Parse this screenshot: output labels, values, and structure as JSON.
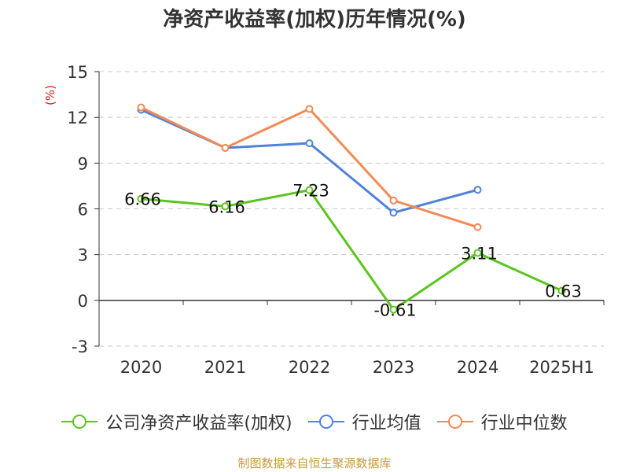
{
  "chart_data": {
    "type": "line",
    "title": "净资产收益率(加权)历年情况(%)",
    "ylabel": "(%)",
    "categories": [
      "2020",
      "2021",
      "2022",
      "2023",
      "2024",
      "2025H1"
    ],
    "ylim": [
      -3,
      15
    ],
    "yticks": [
      -3,
      0,
      3,
      6,
      9,
      12,
      15
    ],
    "grid": true,
    "legend_position": "bottom",
    "series": [
      {
        "name": "公司净资产收益率(加权)",
        "color": "#5cc41e",
        "values": [
          6.66,
          6.16,
          7.23,
          -0.61,
          3.11,
          0.63
        ],
        "labels": [
          "6.66",
          "6.16",
          "7.23",
          "-0.61",
          "3.11",
          "0.63"
        ]
      },
      {
        "name": "行业均值",
        "color": "#4f82d8",
        "values": [
          12.5,
          10.0,
          10.3,
          5.75,
          7.25,
          null
        ]
      },
      {
        "name": "行业中位数",
        "color": "#f28a55",
        "values": [
          12.65,
          10.0,
          12.55,
          6.55,
          4.8,
          null
        ]
      }
    ]
  },
  "footer": {
    "source": "制图数据来自恒生聚源数据库"
  }
}
